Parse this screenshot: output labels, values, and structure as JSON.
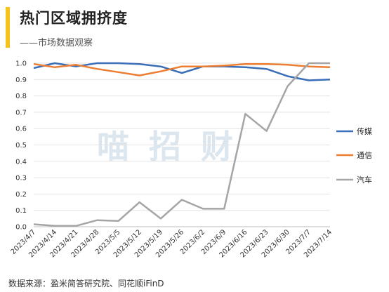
{
  "header": {
    "title": "热门区域拥挤度",
    "subtitle": "——市场数据观察"
  },
  "watermark": "喵招财",
  "footer": {
    "source": "数据来源：盈米简答研究院、同花顺iFinD"
  },
  "colors": {
    "accent": "#f6c21c",
    "series": [
      "#3a6fb8",
      "#ed7d31",
      "#a5a5a5"
    ]
  },
  "chart_data": {
    "type": "line",
    "x": [
      "2023/4/7",
      "2023/4/14",
      "2023/4/21",
      "2023/4/28",
      "2023/5/5",
      "2023/5/12",
      "2023/5/19",
      "2023/5/26",
      "2023/6/2",
      "2023/6/9",
      "2023/6/16",
      "2023/6/23",
      "2023/6/30",
      "2023/7/7",
      "2023/7/14"
    ],
    "ylim": [
      0,
      1.0
    ],
    "yticks": [
      "0.0",
      "0.1",
      "0.2",
      "0.3",
      "0.4",
      "0.5",
      "0.6",
      "0.7",
      "0.8",
      "0.9",
      "1.0"
    ],
    "grid": true,
    "legend_position": "right",
    "series": [
      {
        "name": "传媒",
        "values": [
          0.97,
          1.0,
          0.98,
          1.0,
          1.0,
          0.995,
          0.98,
          0.94,
          0.98,
          0.98,
          0.975,
          0.965,
          0.92,
          0.895,
          0.9
        ]
      },
      {
        "name": "通信",
        "values": [
          0.995,
          0.975,
          0.99,
          0.965,
          0.945,
          0.925,
          0.95,
          0.98,
          0.98,
          0.985,
          0.995,
          0.995,
          0.99,
          0.98,
          0.975
        ]
      },
      {
        "name": "汽车",
        "values": [
          0.015,
          0.005,
          0.005,
          0.04,
          0.035,
          0.15,
          0.05,
          0.165,
          0.11,
          0.11,
          0.69,
          0.585,
          0.86,
          1.0,
          1.0
        ]
      }
    ]
  }
}
